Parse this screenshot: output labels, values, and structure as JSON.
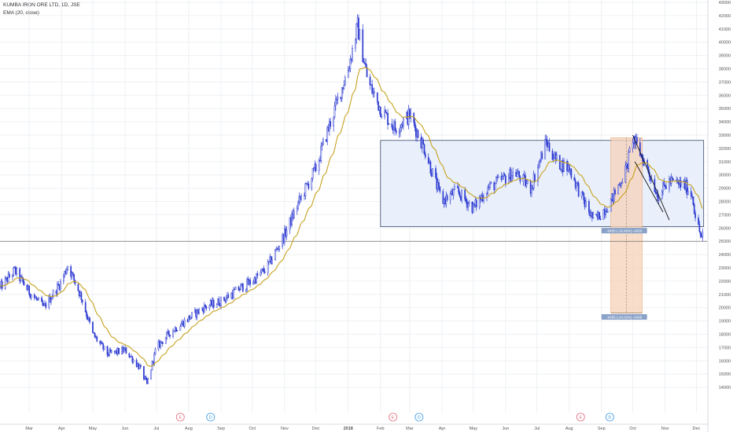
{
  "header": {
    "symbol_line": "KUMBA IRON ORE LTD, 1D, JSE",
    "indicator_line": "EMA (20, close)"
  },
  "colors": {
    "candle": "#2d3bd1",
    "ema": "#c8a21f",
    "rect_fill": "#e9f0fb",
    "rect_stroke": "#3a4a6b",
    "measure_fill": "#f5d2b8",
    "measure_stroke": "#e8a77a",
    "label_bg": "#8aa2c8",
    "grid": "#eef0f4",
    "axis_text": "#555555",
    "event_E": "#e06b7a",
    "event_D": "#3d9be6"
  },
  "chart_data": {
    "type": "candlestick",
    "title": "KUMBA IRON ORE LTD, 1D, JSE",
    "series": [
      {
        "name": "KUMBA IRON ORE LTD"
      },
      {
        "name": "EMA (20, close)"
      }
    ],
    "y_range": [
      13000,
      43000
    ],
    "y_ticks": [
      14000,
      15000,
      16000,
      17000,
      18000,
      19000,
      20000,
      21000,
      22000,
      23000,
      24000,
      25000,
      26000,
      27000,
      28000,
      29000,
      30000,
      31000,
      32000,
      33000,
      34000,
      35000,
      36000,
      37000,
      38000,
      39000,
      40000,
      41000,
      42000,
      43000
    ],
    "y_tick_labels": [
      "14000",
      "15000",
      "16000",
      "17000",
      "18000",
      "19000",
      "20000",
      "21000",
      "22000",
      "23000",
      "24000",
      "25000",
      "26000",
      "27000",
      "28000",
      "29000",
      "30000",
      "31000",
      "32000",
      "33000",
      "34000",
      "35000",
      "36000",
      "37000",
      "38000",
      "39000",
      "40000",
      "41000",
      "42000",
      "43000"
    ],
    "x_range": [
      "2017-02-01",
      "2018-12-12"
    ],
    "x_ticks": [
      "2017-03-01",
      "2017-04-01",
      "2017-05-01",
      "2017-06-01",
      "2017-07-01",
      "2017-08-01",
      "2017-09-01",
      "2017-10-01",
      "2017-11-01",
      "2017-12-01",
      "2018-01-01",
      "2018-02-01",
      "2018-03-01",
      "2018-04-01",
      "2018-05-01",
      "2018-06-01",
      "2018-07-01",
      "2018-08-01",
      "2018-09-01",
      "2018-10-01",
      "2018-11-01",
      "2018-12-01"
    ],
    "x_tick_labels": [
      "Mar",
      "Apr",
      "May",
      "Jun",
      "Jul",
      "Aug",
      "Sep",
      "Oct",
      "Nov",
      "Dec",
      "2018",
      "Feb",
      "Mar",
      "Apr",
      "May",
      "Jun",
      "Jul",
      "Aug",
      "Sep",
      "Oct",
      "Nov",
      "Dec"
    ],
    "price_key_points": [
      [
        "2017-02-01",
        21500
      ],
      [
        "2017-02-15",
        22800
      ],
      [
        "2017-03-01",
        21200
      ],
      [
        "2017-03-15",
        20000
      ],
      [
        "2017-04-01",
        22000
      ],
      [
        "2017-04-07",
        23200
      ],
      [
        "2017-04-20",
        20800
      ],
      [
        "2017-05-01",
        18000
      ],
      [
        "2017-05-15",
        16500
      ],
      [
        "2017-06-01",
        16800
      ],
      [
        "2017-06-15",
        15500
      ],
      [
        "2017-06-22",
        14200
      ],
      [
        "2017-07-01",
        17000
      ],
      [
        "2017-07-15",
        18200
      ],
      [
        "2017-08-01",
        19200
      ],
      [
        "2017-08-15",
        20000
      ],
      [
        "2017-09-01",
        20500
      ],
      [
        "2017-09-20",
        21500
      ],
      [
        "2017-10-01",
        22000
      ],
      [
        "2017-10-15",
        23000
      ],
      [
        "2017-11-01",
        25500
      ],
      [
        "2017-11-15",
        28000
      ],
      [
        "2017-12-01",
        30500
      ],
      [
        "2017-12-15",
        34000
      ],
      [
        "2018-01-01",
        38000
      ],
      [
        "2018-01-10",
        41200
      ],
      [
        "2018-01-20",
        37000
      ],
      [
        "2018-02-01",
        35000
      ],
      [
        "2018-02-15",
        33500
      ],
      [
        "2018-03-01",
        34500
      ],
      [
        "2018-03-15",
        32000
      ],
      [
        "2018-04-01",
        28000
      ],
      [
        "2018-04-15",
        28800
      ],
      [
        "2018-05-01",
        27500
      ],
      [
        "2018-05-15",
        29000
      ],
      [
        "2018-06-01",
        29800
      ],
      [
        "2018-06-10",
        30200
      ],
      [
        "2018-06-25",
        29000
      ],
      [
        "2018-07-10",
        32500
      ],
      [
        "2018-07-20",
        31000
      ],
      [
        "2018-08-01",
        30500
      ],
      [
        "2018-08-15",
        28000
      ],
      [
        "2018-08-25",
        26500
      ],
      [
        "2018-09-10",
        28000
      ],
      [
        "2018-09-25",
        30500
      ],
      [
        "2018-10-01",
        32800
      ],
      [
        "2018-10-15",
        30500
      ],
      [
        "2018-10-25",
        28500
      ],
      [
        "2018-11-05",
        29500
      ],
      [
        "2018-11-20",
        29200
      ],
      [
        "2018-11-27",
        28500
      ],
      [
        "2018-12-01",
        26500
      ],
      [
        "2018-12-06",
        25200
      ],
      [
        "2018-12-10",
        26000
      ]
    ],
    "horizontal_line": 25000,
    "range_rectangle": {
      "x_start": "2018-02-01",
      "x_end": "2018-12-08",
      "y_low": 26100,
      "y_high": 32600
    },
    "measure_box": {
      "x_start": "2018-09-10",
      "x_end": "2018-10-10",
      "y_from": 32800,
      "y_to": 19600
    },
    "measure_labels": [
      {
        "text": "-6450 (-19.49%) -6450",
        "x": "2018-09-10",
        "y": 25800
      },
      {
        "text": "-6456 (-24.02%) -6456",
        "x": "2018-09-10",
        "y": 19300
      }
    ],
    "trend_lines": [
      [
        [
          "2018-10-01",
          33000
        ],
        [
          "2018-11-05",
          26600
        ]
      ],
      [
        [
          "2018-10-03",
          31000
        ],
        [
          "2018-10-30",
          27200
        ]
      ]
    ],
    "events": [
      {
        "type": "E",
        "x": "2017-07-24"
      },
      {
        "type": "D",
        "x": "2017-08-22"
      },
      {
        "type": "E",
        "x": "2018-02-13"
      },
      {
        "type": "D",
        "x": "2018-03-10"
      },
      {
        "type": "E",
        "x": "2018-08-12"
      },
      {
        "type": "D",
        "x": "2018-09-09"
      }
    ]
  }
}
